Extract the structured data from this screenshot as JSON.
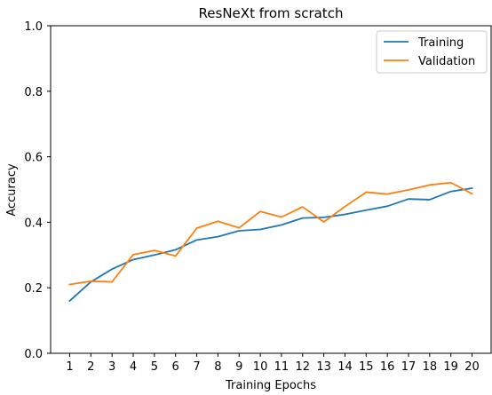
{
  "chart_data": {
    "type": "line",
    "title": "ResNeXt from scratch",
    "xlabel": "Training Epochs",
    "ylabel": "Accuracy",
    "x": [
      1,
      2,
      3,
      4,
      5,
      6,
      7,
      8,
      9,
      10,
      11,
      12,
      13,
      14,
      15,
      16,
      17,
      18,
      19,
      20
    ],
    "x_tick_labels": [
      "1",
      "2",
      "3",
      "4",
      "5",
      "6",
      "7",
      "8",
      "9",
      "10",
      "11",
      "12",
      "13",
      "14",
      "15",
      "16",
      "17",
      "18",
      "19",
      "20"
    ],
    "xlim": [
      0.1,
      20.9
    ],
    "ylim": [
      0.0,
      1.0
    ],
    "y_ticks": [
      0.0,
      0.2,
      0.4,
      0.6,
      0.8,
      1.0
    ],
    "y_tick_labels": [
      "0.0",
      "0.2",
      "0.4",
      "0.6",
      "0.8",
      "1.0"
    ],
    "grid": false,
    "legend_position": "top-right",
    "series": [
      {
        "name": "Training",
        "color": "#1f77b4",
        "values": [
          0.16,
          0.218,
          0.257,
          0.286,
          0.3,
          0.316,
          0.346,
          0.356,
          0.374,
          0.378,
          0.392,
          0.413,
          0.415,
          0.424,
          0.437,
          0.449,
          0.471,
          0.469,
          0.494,
          0.504
        ]
      },
      {
        "name": "Validation",
        "color": "#ff7f0e",
        "values": [
          0.21,
          0.22,
          0.218,
          0.301,
          0.314,
          0.297,
          0.382,
          0.403,
          0.383,
          0.433,
          0.416,
          0.447,
          0.401,
          0.448,
          0.492,
          0.486,
          0.499,
          0.514,
          0.521,
          0.487
        ]
      }
    ]
  }
}
